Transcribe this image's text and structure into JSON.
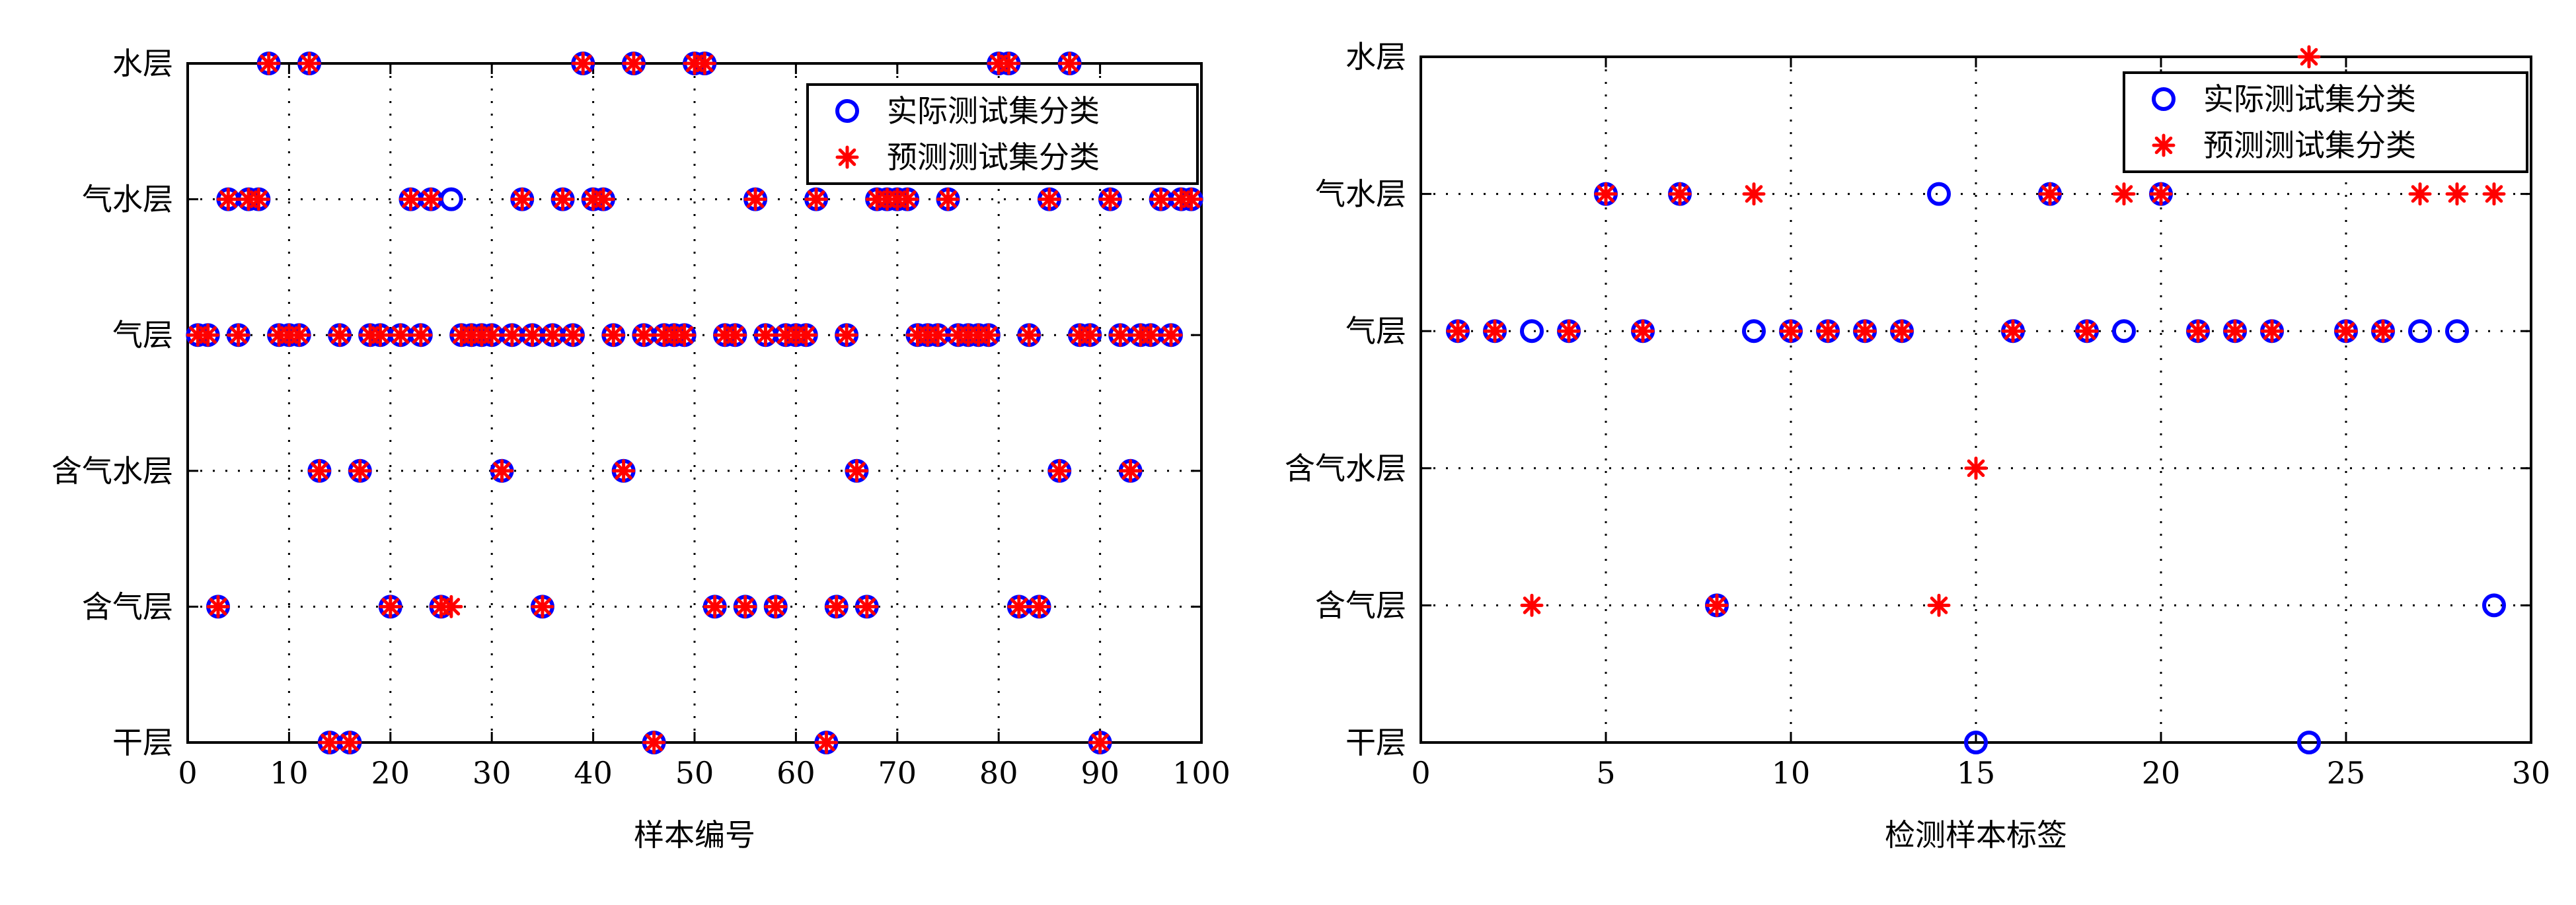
{
  "chart_data": [
    {
      "type": "scatter",
      "xlabel": "样本编号",
      "xlim": [
        0,
        100
      ],
      "xticks": [
        0,
        10,
        20,
        30,
        40,
        50,
        60,
        70,
        80,
        90,
        100
      ],
      "ycategories": [
        "干层",
        "含气层",
        "含气水层",
        "气层",
        "气水层",
        "水层"
      ],
      "grid": true,
      "legend_position": "top-right",
      "series": [
        {
          "name": "实际测试集分类",
          "marker": "circle",
          "color": "#0000ff",
          "points": [
            [
              1,
              "气层"
            ],
            [
              2,
              "气层"
            ],
            [
              3,
              "含气层"
            ],
            [
              4,
              "气水层"
            ],
            [
              5,
              "气层"
            ],
            [
              6,
              "气水层"
            ],
            [
              7,
              "气水层"
            ],
            [
              8,
              "水层"
            ],
            [
              9,
              "气层"
            ],
            [
              10,
              "气层"
            ],
            [
              11,
              "气层"
            ],
            [
              12,
              "水层"
            ],
            [
              13,
              "含气水层"
            ],
            [
              14,
              "干层"
            ],
            [
              15,
              "气层"
            ],
            [
              16,
              "干层"
            ],
            [
              17,
              "含气水层"
            ],
            [
              18,
              "气层"
            ],
            [
              19,
              "气层"
            ],
            [
              20,
              "含气层"
            ],
            [
              21,
              "气层"
            ],
            [
              22,
              "气水层"
            ],
            [
              23,
              "气层"
            ],
            [
              24,
              "气水层"
            ],
            [
              25,
              "含气层"
            ],
            [
              26,
              "气水层"
            ],
            [
              27,
              "气层"
            ],
            [
              28,
              "气层"
            ],
            [
              29,
              "气层"
            ],
            [
              30,
              "气层"
            ],
            [
              31,
              "含气水层"
            ],
            [
              32,
              "气层"
            ],
            [
              33,
              "气水层"
            ],
            [
              34,
              "气层"
            ],
            [
              35,
              "含气层"
            ],
            [
              36,
              "气层"
            ],
            [
              37,
              "气水层"
            ],
            [
              38,
              "气层"
            ],
            [
              39,
              "水层"
            ],
            [
              40,
              "气水层"
            ],
            [
              41,
              "气水层"
            ],
            [
              42,
              "气层"
            ],
            [
              43,
              "含气水层"
            ],
            [
              44,
              "水层"
            ],
            [
              45,
              "气层"
            ],
            [
              46,
              "干层"
            ],
            [
              47,
              "气层"
            ],
            [
              48,
              "气层"
            ],
            [
              49,
              "气层"
            ],
            [
              50,
              "水层"
            ],
            [
              51,
              "水层"
            ],
            [
              52,
              "含气层"
            ],
            [
              53,
              "气层"
            ],
            [
              54,
              "气层"
            ],
            [
              55,
              "含气层"
            ],
            [
              56,
              "气水层"
            ],
            [
              57,
              "气层"
            ],
            [
              58,
              "含气层"
            ],
            [
              59,
              "气层"
            ],
            [
              60,
              "气层"
            ],
            [
              61,
              "气层"
            ],
            [
              62,
              "气水层"
            ],
            [
              63,
              "干层"
            ],
            [
              64,
              "含气层"
            ],
            [
              65,
              "气层"
            ],
            [
              66,
              "含气水层"
            ],
            [
              67,
              "含气层"
            ],
            [
              68,
              "气水层"
            ],
            [
              69,
              "气水层"
            ],
            [
              70,
              "气水层"
            ],
            [
              71,
              "气水层"
            ],
            [
              72,
              "气层"
            ],
            [
              73,
              "气层"
            ],
            [
              74,
              "气层"
            ],
            [
              75,
              "气水层"
            ],
            [
              76,
              "气层"
            ],
            [
              77,
              "气层"
            ],
            [
              78,
              "气层"
            ],
            [
              79,
              "气层"
            ],
            [
              80,
              "水层"
            ],
            [
              81,
              "水层"
            ],
            [
              82,
              "含气层"
            ],
            [
              83,
              "气层"
            ],
            [
              84,
              "含气层"
            ],
            [
              85,
              "气水层"
            ],
            [
              86,
              "含气水层"
            ],
            [
              87,
              "水层"
            ],
            [
              88,
              "气层"
            ],
            [
              89,
              "气层"
            ],
            [
              90,
              "干层"
            ],
            [
              91,
              "气水层"
            ],
            [
              92,
              "气层"
            ],
            [
              93,
              "含气水层"
            ],
            [
              94,
              "气层"
            ],
            [
              95,
              "气层"
            ],
            [
              96,
              "气水层"
            ],
            [
              97,
              "气层"
            ],
            [
              98,
              "气水层"
            ],
            [
              99,
              "气水层"
            ]
          ]
        },
        {
          "name": "预测测试集分类",
          "marker": "asterisk",
          "color": "#ff0000",
          "points": [
            [
              1,
              "气层"
            ],
            [
              2,
              "气层"
            ],
            [
              3,
              "含气层"
            ],
            [
              4,
              "气水层"
            ],
            [
              5,
              "气层"
            ],
            [
              6,
              "气水层"
            ],
            [
              7,
              "气水层"
            ],
            [
              8,
              "水层"
            ],
            [
              9,
              "气层"
            ],
            [
              10,
              "气层"
            ],
            [
              11,
              "气层"
            ],
            [
              12,
              "水层"
            ],
            [
              13,
              "含气水层"
            ],
            [
              14,
              "干层"
            ],
            [
              15,
              "气层"
            ],
            [
              16,
              "干层"
            ],
            [
              17,
              "含气水层"
            ],
            [
              18,
              "气层"
            ],
            [
              19,
              "气层"
            ],
            [
              20,
              "含气层"
            ],
            [
              21,
              "气层"
            ],
            [
              22,
              "气水层"
            ],
            [
              23,
              "气层"
            ],
            [
              24,
              "气水层"
            ],
            [
              25,
              "含气层"
            ],
            [
              26,
              "含气层"
            ],
            [
              27,
              "气层"
            ],
            [
              28,
              "气层"
            ],
            [
              29,
              "气层"
            ],
            [
              30,
              "气层"
            ],
            [
              31,
              "含气水层"
            ],
            [
              32,
              "气层"
            ],
            [
              33,
              "气水层"
            ],
            [
              34,
              "气层"
            ],
            [
              35,
              "含气层"
            ],
            [
              36,
              "气层"
            ],
            [
              37,
              "气水层"
            ],
            [
              38,
              "气层"
            ],
            [
              39,
              "水层"
            ],
            [
              40,
              "气水层"
            ],
            [
              41,
              "气水层"
            ],
            [
              42,
              "气层"
            ],
            [
              43,
              "含气水层"
            ],
            [
              44,
              "水层"
            ],
            [
              45,
              "气层"
            ],
            [
              46,
              "干层"
            ],
            [
              47,
              "气层"
            ],
            [
              48,
              "气层"
            ],
            [
              49,
              "气层"
            ],
            [
              50,
              "水层"
            ],
            [
              51,
              "水层"
            ],
            [
              52,
              "含气层"
            ],
            [
              53,
              "气层"
            ],
            [
              54,
              "气层"
            ],
            [
              55,
              "含气层"
            ],
            [
              56,
              "气水层"
            ],
            [
              57,
              "气层"
            ],
            [
              58,
              "含气层"
            ],
            [
              59,
              "气层"
            ],
            [
              60,
              "气层"
            ],
            [
              61,
              "气层"
            ],
            [
              62,
              "气水层"
            ],
            [
              63,
              "干层"
            ],
            [
              64,
              "含气层"
            ],
            [
              65,
              "气层"
            ],
            [
              66,
              "含气水层"
            ],
            [
              67,
              "含气层"
            ],
            [
              68,
              "气水层"
            ],
            [
              69,
              "气水层"
            ],
            [
              70,
              "气水层"
            ],
            [
              71,
              "气水层"
            ],
            [
              72,
              "气层"
            ],
            [
              73,
              "气层"
            ],
            [
              74,
              "气层"
            ],
            [
              75,
              "气水层"
            ],
            [
              76,
              "气层"
            ],
            [
              77,
              "气层"
            ],
            [
              78,
              "气层"
            ],
            [
              79,
              "气层"
            ],
            [
              80,
              "水层"
            ],
            [
              81,
              "水层"
            ],
            [
              82,
              "含气层"
            ],
            [
              83,
              "气层"
            ],
            [
              84,
              "含气层"
            ],
            [
              85,
              "气水层"
            ],
            [
              86,
              "含气水层"
            ],
            [
              87,
              "水层"
            ],
            [
              88,
              "气层"
            ],
            [
              89,
              "气层"
            ],
            [
              90,
              "干层"
            ],
            [
              91,
              "气水层"
            ],
            [
              92,
              "气层"
            ],
            [
              93,
              "含气水层"
            ],
            [
              94,
              "气层"
            ],
            [
              95,
              "气层"
            ],
            [
              96,
              "气水层"
            ],
            [
              97,
              "气层"
            ],
            [
              98,
              "气水层"
            ],
            [
              99,
              "气水层"
            ]
          ]
        }
      ]
    },
    {
      "type": "scatter",
      "xlabel": "检测样本标签",
      "xlim": [
        0,
        30
      ],
      "xticks": [
        0,
        5,
        10,
        15,
        20,
        25,
        30
      ],
      "ycategories": [
        "干层",
        "含气层",
        "含气水层",
        "气层",
        "气水层",
        "水层"
      ],
      "grid": true,
      "legend_position": "top-right",
      "series": [
        {
          "name": "实际测试集分类",
          "marker": "circle",
          "color": "#0000ff",
          "points": [
            [
              1,
              "气层"
            ],
            [
              2,
              "气层"
            ],
            [
              3,
              "气层"
            ],
            [
              4,
              "气层"
            ],
            [
              5,
              "气水层"
            ],
            [
              6,
              "气层"
            ],
            [
              7,
              "气水层"
            ],
            [
              8,
              "含气层"
            ],
            [
              9,
              "气层"
            ],
            [
              10,
              "气层"
            ],
            [
              11,
              "气层"
            ],
            [
              12,
              "气层"
            ],
            [
              13,
              "气层"
            ],
            [
              14,
              "气水层"
            ],
            [
              15,
              "干层"
            ],
            [
              16,
              "气层"
            ],
            [
              17,
              "气水层"
            ],
            [
              18,
              "气层"
            ],
            [
              19,
              "气层"
            ],
            [
              20,
              "气水层"
            ],
            [
              21,
              "气层"
            ],
            [
              22,
              "气层"
            ],
            [
              23,
              "气层"
            ],
            [
              24,
              "干层"
            ],
            [
              25,
              "气层"
            ],
            [
              26,
              "气层"
            ],
            [
              27,
              "气层"
            ],
            [
              28,
              "气层"
            ],
            [
              29,
              "含气层"
            ]
          ]
        },
        {
          "name": "预测测试集分类",
          "marker": "asterisk",
          "color": "#ff0000",
          "points": [
            [
              1,
              "气层"
            ],
            [
              2,
              "气层"
            ],
            [
              3,
              "含气层"
            ],
            [
              4,
              "气层"
            ],
            [
              5,
              "气水层"
            ],
            [
              6,
              "气层"
            ],
            [
              7,
              "气水层"
            ],
            [
              8,
              "含气层"
            ],
            [
              9,
              "气水层"
            ],
            [
              10,
              "气层"
            ],
            [
              11,
              "气层"
            ],
            [
              12,
              "气层"
            ],
            [
              13,
              "气层"
            ],
            [
              14,
              "含气层"
            ],
            [
              15,
              "含气水层"
            ],
            [
              16,
              "气层"
            ],
            [
              17,
              "气水层"
            ],
            [
              18,
              "气层"
            ],
            [
              19,
              "气水层"
            ],
            [
              20,
              "气水层"
            ],
            [
              21,
              "气层"
            ],
            [
              22,
              "气层"
            ],
            [
              23,
              "气层"
            ],
            [
              24,
              "水层"
            ],
            [
              25,
              "气层"
            ],
            [
              26,
              "气层"
            ],
            [
              27,
              "气水层"
            ],
            [
              28,
              "气水层"
            ],
            [
              29,
              "气水层"
            ]
          ]
        }
      ]
    }
  ]
}
